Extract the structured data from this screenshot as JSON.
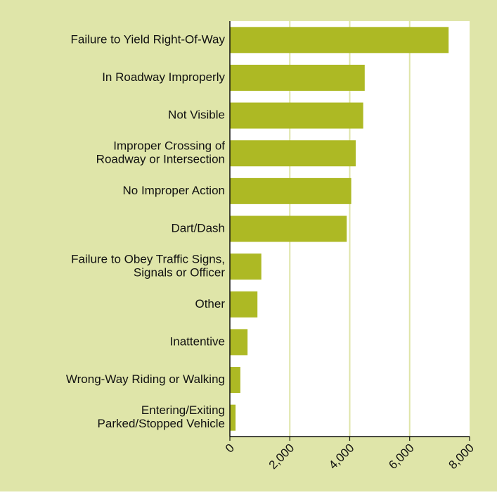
{
  "chart_data": {
    "type": "bar",
    "orientation": "horizontal",
    "categories": [
      [
        "Failure to Yield Right-Of-Way"
      ],
      [
        "In Roadway Improperly"
      ],
      [
        "Not Visible"
      ],
      [
        "Improper Crossing of",
        "Roadway or Intersection"
      ],
      [
        "No Improper Action"
      ],
      [
        "Dart/Dash"
      ],
      [
        "Failure to Obey Traffic Signs,",
        "Signals or Officer"
      ],
      [
        "Other"
      ],
      [
        "Inattentive"
      ],
      [
        "Wrong-Way Riding or Walking"
      ],
      [
        "Entering/Exiting",
        "Parked/Stopped Vehicle"
      ]
    ],
    "values": [
      7300,
      4500,
      4450,
      4200,
      4050,
      3900,
      1050,
      920,
      590,
      350,
      190
    ],
    "color": "#adb924",
    "xlim": [
      0,
      8000
    ],
    "xticks": [
      0,
      {
        "value": 2000,
        "label": "2,000"
      },
      {
        "value": 4000,
        "label": "4,000"
      },
      {
        "value": 6000,
        "label": "6,000"
      },
      {
        "value": 8000,
        "label": "8,000"
      }
    ],
    "grid": true
  }
}
